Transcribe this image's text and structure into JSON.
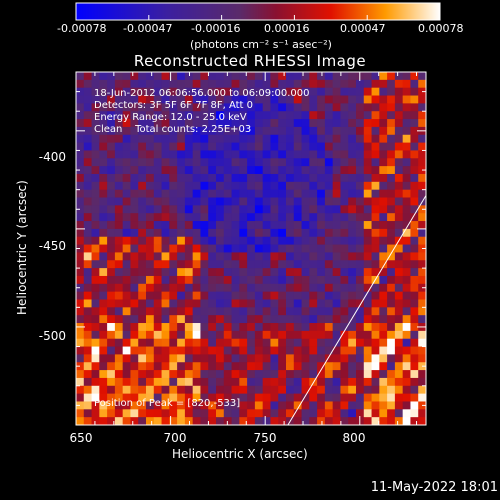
{
  "colorbar": {
    "ticks": [
      "-0.00078",
      "-0.00047",
      "-0.00016",
      "0.00016",
      "0.00047",
      "0.00078"
    ],
    "unit": "(photons cm⁻² s⁻¹ asec⁻²)"
  },
  "info": {
    "line1": "18-Jun-2012 06:06:56.000 to 06:09:00.000",
    "line2": "Detectors: 3F 5F 6F 7F 8F, Att 0",
    "line3": "Energy Range: 12.0 - 25.0 keV",
    "line4": "Clean    Total counts: 2.25E+03",
    "peak": "Position of Peak = [820,-533]"
  },
  "footer": "11-May-2022 18:01",
  "chart_data": {
    "type": "heatmap",
    "title": "Reconstructed RHESSI Image",
    "xlabel": "Heliocentric X (arcsec)",
    "ylabel": "Heliocentric Y (arcsec)",
    "xlim": [
      650,
      835
    ],
    "ylim": [
      -550,
      -370
    ],
    "xticks": [
      "650",
      "700",
      "750",
      "800"
    ],
    "yticks": [
      "-400",
      "-450",
      "-500"
    ],
    "colorbar_range": [
      -0.00078,
      0.00078
    ],
    "colormap": "blue-purple-red-yellow-white",
    "peak_position": [
      820,
      -533
    ],
    "limb_line": [
      [
        762,
        -550
      ],
      [
        835,
        -433
      ]
    ]
  }
}
